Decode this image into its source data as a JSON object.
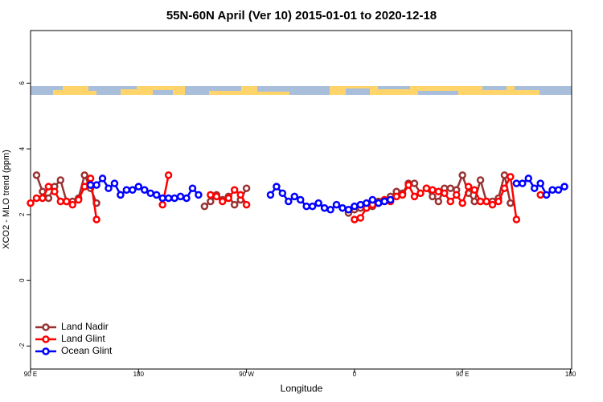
{
  "chart_data": {
    "type": "line",
    "title": "55N-60N April (Ver 10)   2015-01-01 to 2020-12-18",
    "x_label": "Longitude",
    "y_label": "XCO2 - MLO trend (ppm)",
    "xlim": [
      90,
      541
    ],
    "ylim": [
      -2.7,
      7.6
    ],
    "xticks": [
      {
        "value": 90,
        "label": "90 E"
      },
      180,
      {
        "value": 270,
        "label": "90 W"
      },
      {
        "value": 360,
        "label": "0"
      },
      {
        "value": 450,
        "label": "90 E"
      },
      {
        "value": 540,
        "label": "180"
      }
    ],
    "yticks": [
      -2,
      0,
      2,
      4,
      6
    ],
    "legend": "bottom-left",
    "x": [
      90,
      95,
      100,
      105,
      110,
      115,
      120,
      125,
      130,
      135,
      140,
      145,
      150,
      155,
      160,
      165,
      170,
      175,
      180,
      185,
      190,
      195,
      200,
      205,
      210,
      215,
      220,
      225,
      230,
      235,
      240,
      245,
      250,
      255,
      260,
      265,
      270,
      275,
      280,
      285,
      290,
      295,
      300,
      305,
      310,
      315,
      320,
      325,
      330,
      335,
      340,
      345,
      350,
      355,
      360,
      365,
      370,
      375,
      380,
      385,
      390,
      395,
      400,
      405,
      410,
      415,
      420,
      425,
      430,
      435,
      440,
      445,
      450,
      455,
      460,
      465,
      470,
      475,
      480,
      485,
      490,
      495,
      500,
      505,
      510,
      515,
      520,
      525,
      530,
      535
    ],
    "series": [
      {
        "name": "Land Nadir",
        "color": "#993333",
        "values": [
          null,
          3.2,
          2.7,
          2.5,
          2.85,
          3.05,
          2.4,
          2.4,
          2.5,
          3.2,
          2.8,
          2.35,
          null,
          null,
          null,
          null,
          null,
          null,
          null,
          null,
          null,
          null,
          null,
          null,
          null,
          null,
          null,
          null,
          null,
          2.25,
          2.4,
          2.6,
          2.45,
          2.55,
          2.3,
          2.45,
          2.8,
          null,
          null,
          null,
          null,
          null,
          null,
          null,
          null,
          null,
          null,
          null,
          null,
          null,
          null,
          null,
          null,
          2.05,
          2.15,
          2.2,
          2.2,
          2.25,
          2.4,
          2.45,
          2.55,
          2.7,
          2.65,
          2.95,
          2.95,
          2.65,
          2.8,
          2.55,
          2.4,
          2.8,
          2.8,
          2.75,
          3.2,
          2.65,
          2.4,
          3.05,
          2.4,
          2.4,
          2.5,
          3.2,
          2.35,
          null,
          null,
          null,
          null,
          null,
          null,
          null,
          null,
          null
        ]
      },
      {
        "name": "Land Glint",
        "color": "#ff0000",
        "values": [
          2.35,
          2.5,
          2.5,
          2.85,
          2.7,
          2.4,
          2.4,
          2.3,
          2.45,
          2.85,
          3.1,
          1.85,
          null,
          null,
          null,
          2.6,
          null,
          null,
          null,
          null,
          null,
          null,
          2.3,
          3.2,
          null,
          null,
          null,
          null,
          null,
          null,
          2.6,
          2.55,
          2.4,
          2.5,
          2.75,
          2.6,
          2.3,
          null,
          null,
          null,
          null,
          null,
          null,
          null,
          null,
          null,
          null,
          null,
          null,
          null,
          null,
          null,
          null,
          null,
          1.85,
          1.9,
          2.2,
          2.3,
          2.35,
          2.45,
          2.4,
          2.55,
          2.6,
          2.9,
          2.55,
          2.65,
          2.8,
          2.75,
          2.7,
          2.65,
          2.4,
          2.6,
          2.35,
          2.85,
          2.75,
          2.4,
          2.4,
          2.3,
          2.4,
          2.8,
          3.15,
          1.85,
          null,
          null,
          null,
          2.6,
          null,
          null,
          null,
          null
        ]
      },
      {
        "name": "Ocean Glint",
        "color": "#0000ff",
        "values": [
          null,
          null,
          null,
          null,
          null,
          null,
          null,
          null,
          null,
          null,
          2.9,
          2.9,
          3.1,
          2.8,
          2.95,
          2.6,
          2.75,
          2.75,
          2.85,
          2.75,
          2.65,
          2.6,
          2.5,
          2.5,
          2.5,
          2.55,
          2.5,
          2.8,
          2.6,
          null,
          null,
          null,
          null,
          null,
          null,
          null,
          null,
          null,
          null,
          null,
          2.6,
          2.85,
          2.65,
          2.4,
          2.55,
          2.45,
          2.25,
          2.25,
          2.35,
          2.2,
          2.15,
          2.3,
          2.2,
          2.15,
          2.25,
          2.3,
          2.35,
          2.45,
          2.35,
          2.4,
          2.45,
          null,
          null,
          null,
          null,
          null,
          null,
          null,
          null,
          null,
          null,
          null,
          null,
          null,
          null,
          null,
          null,
          null,
          null,
          null,
          null,
          2.95,
          2.95,
          3.1,
          2.8,
          2.95,
          2.6,
          2.75,
          2.75,
          2.85
        ]
      }
    ]
  }
}
